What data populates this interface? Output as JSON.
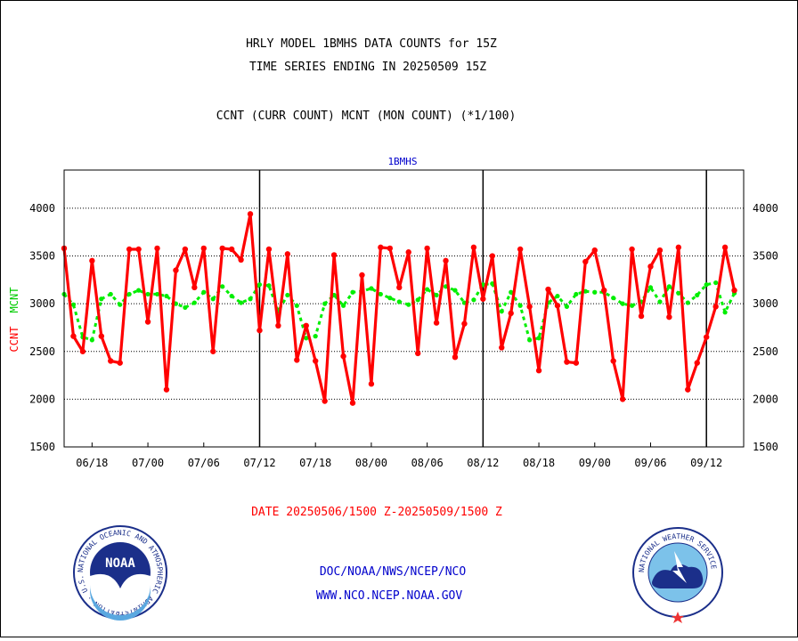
{
  "titles": {
    "line1": "HRLY MODEL 1BMHS DATA COUNTS for 15Z",
    "line2": "TIME SERIES ENDING IN 20250509 15Z",
    "line3": "CCNT (CURR COUNT) MCNT (MON COUNT) (*1/100)"
  },
  "footer": {
    "date_range": "DATE 20250506/1500 Z-20250509/1500 Z",
    "link1": "DOC/NOAA/NWS/NCEP/NCO",
    "link2": "WWW.NCO.NCEP.NOAA.GOV"
  },
  "logos": {
    "noaa_text": "NOAA",
    "noaa_ring_text": "NATIONAL OCEANIC AND ATMOSPHERIC ADMINISTRATION · U.S. DEPARTMENT OF COMMERCE ·",
    "nws_ring_text": "NATIONAL WEATHER SERVICE"
  },
  "colors": {
    "ccnt": "#ff0000",
    "mcnt": "#00ee00",
    "panel_title": "#0000cc",
    "footer_red": "#ff0000",
    "footer_blue": "#0000cc"
  },
  "chart_data": {
    "type": "line",
    "panel_title": "1BMHS",
    "ylabel_left": "CCNT",
    "ylabel_right": "MCNT",
    "ylim": [
      1500,
      4400
    ],
    "y_ticks": [
      1500,
      2000,
      2500,
      3000,
      3500,
      4000
    ],
    "grid_y": [
      2000,
      2500,
      3000,
      3500,
      4000
    ],
    "x_range": [
      0,
      73
    ],
    "x_ticks": [
      {
        "x": 3,
        "label": "06/18"
      },
      {
        "x": 9,
        "label": "07/00"
      },
      {
        "x": 15,
        "label": "07/06"
      },
      {
        "x": 21,
        "label": "07/12"
      },
      {
        "x": 27,
        "label": "07/18"
      },
      {
        "x": 33,
        "label": "08/00"
      },
      {
        "x": 39,
        "label": "08/06"
      },
      {
        "x": 45,
        "label": "08/12"
      },
      {
        "x": 51,
        "label": "08/18"
      },
      {
        "x": 57,
        "label": "09/00"
      },
      {
        "x": 63,
        "label": "09/06"
      },
      {
        "x": 69,
        "label": "09/12"
      }
    ],
    "day_dividers": [
      21,
      45,
      69
    ],
    "series": [
      {
        "name": "CCNT",
        "values": [
          3580,
          2660,
          2500,
          3450,
          2660,
          2400,
          2380,
          3570,
          3570,
          2810,
          3580,
          2100,
          3350,
          3570,
          3170,
          3580,
          2500,
          3580,
          3570,
          3460,
          3940,
          2720,
          3570,
          2770,
          3520,
          2410,
          2770,
          2400,
          1980,
          3510,
          2450,
          1960,
          3300,
          2160,
          3590,
          3580,
          3170,
          3540,
          2480,
          3580,
          2800,
          3450,
          2440,
          2790,
          3590,
          3050,
          3500,
          2540,
          2900,
          3570,
          2970,
          2300,
          3150,
          2980,
          2390,
          2380,
          3440,
          3560,
          3140,
          2400,
          2000,
          3570,
          2870,
          3390,
          3560,
          2860,
          3590,
          2100,
          2380,
          2650,
          2970,
          3590,
          3140
        ]
      },
      {
        "name": "MCNT",
        "values": [
          3100,
          2990,
          2650,
          2620,
          3050,
          3100,
          2990,
          3100,
          3140,
          3100,
          3100,
          3080,
          3000,
          2960,
          3010,
          3120,
          3050,
          3180,
          3080,
          3010,
          3050,
          3200,
          3190,
          2920,
          3090,
          2980,
          2640,
          2660,
          3000,
          3090,
          2980,
          3120,
          3130,
          3160,
          3100,
          3060,
          3020,
          2990,
          3040,
          3150,
          3090,
          3180,
          3140,
          3010,
          3040,
          3200,
          3210,
          2920,
          3120,
          2980,
          2620,
          2640,
          3010,
          3080,
          2970,
          3100,
          3130,
          3120,
          3120,
          3060,
          3000,
          2980,
          3020,
          3170,
          3020,
          3180,
          3110,
          3010,
          3090,
          3200,
          3220,
          2910,
          3110
        ]
      }
    ]
  }
}
